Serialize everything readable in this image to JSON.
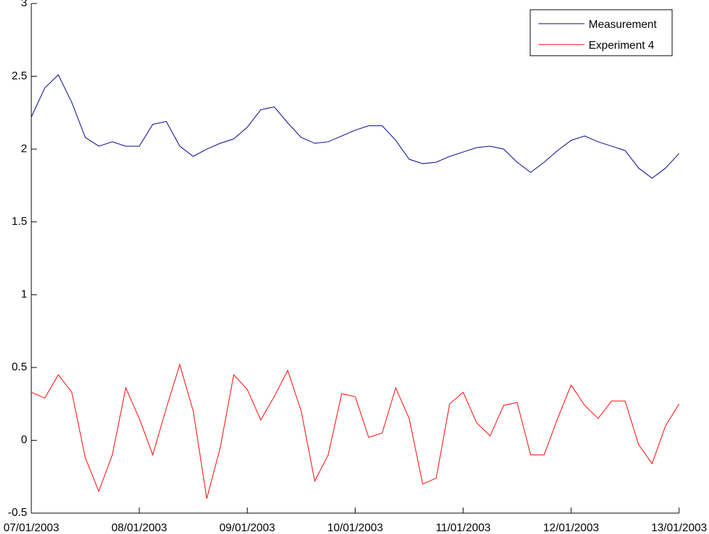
{
  "chart_data": {
    "type": "line",
    "x": [
      0,
      3,
      6,
      9,
      12,
      15,
      18,
      21,
      24,
      27,
      30,
      33,
      36,
      39,
      42,
      45,
      48,
      51,
      54,
      57,
      60,
      63,
      66,
      69,
      72,
      75,
      78,
      81,
      84,
      87,
      90,
      93,
      96,
      99,
      102,
      105,
      108,
      111,
      114,
      117,
      120,
      123,
      126,
      129,
      132,
      135,
      138,
      141,
      144
    ],
    "series": [
      {
        "name": "Measurement",
        "color": "#00008b",
        "values": [
          2.22,
          2.42,
          2.51,
          2.32,
          2.08,
          2.02,
          2.05,
          2.02,
          2.02,
          2.17,
          2.19,
          2.02,
          1.95,
          2.0,
          2.04,
          2.07,
          2.15,
          2.27,
          2.29,
          2.18,
          2.08,
          2.04,
          2.05,
          2.09,
          2.13,
          2.16,
          2.16,
          2.06,
          1.93,
          1.9,
          1.91,
          1.95,
          1.98,
          2.01,
          2.02,
          2.0,
          1.91,
          1.84,
          1.91,
          1.99,
          2.06,
          2.09,
          2.05,
          2.02,
          1.99,
          1.87,
          1.8,
          1.87,
          1.97
        ]
      },
      {
        "name": "Experiment 4",
        "color": "#ff0000",
        "values": [
          0.33,
          0.29,
          0.45,
          0.33,
          -0.12,
          -0.35,
          -0.1,
          0.36,
          0.15,
          -0.1,
          0.22,
          0.52,
          0.2,
          -0.4,
          -0.05,
          0.45,
          0.35,
          0.14,
          0.3,
          0.48,
          0.2,
          -0.28,
          -0.1,
          0.32,
          0.3,
          0.02,
          0.05,
          0.36,
          0.15,
          -0.3,
          -0.26,
          0.25,
          0.33,
          0.12,
          0.03,
          0.24,
          0.26,
          -0.1,
          -0.1,
          0.15,
          0.38,
          0.24,
          0.15,
          0.27,
          0.27,
          -0.03,
          -0.16,
          0.1,
          0.25
        ]
      }
    ],
    "xlim": [
      0,
      144
    ],
    "xticks": [
      {
        "value": 0,
        "label": "07/01/2003"
      },
      {
        "value": 24,
        "label": "08/01/2003"
      },
      {
        "value": 48,
        "label": "09/01/2003"
      },
      {
        "value": 72,
        "label": "10/01/2003"
      },
      {
        "value": 96,
        "label": "11/01/2003"
      },
      {
        "value": 120,
        "label": "12/01/2003"
      },
      {
        "value": 144,
        "label": "13/01/2003"
      }
    ],
    "ylim": [
      -0.5,
      3
    ],
    "yticks": [
      -0.5,
      0,
      0.5,
      1,
      1.5,
      2,
      2.5,
      3
    ],
    "legend": "upper right"
  }
}
